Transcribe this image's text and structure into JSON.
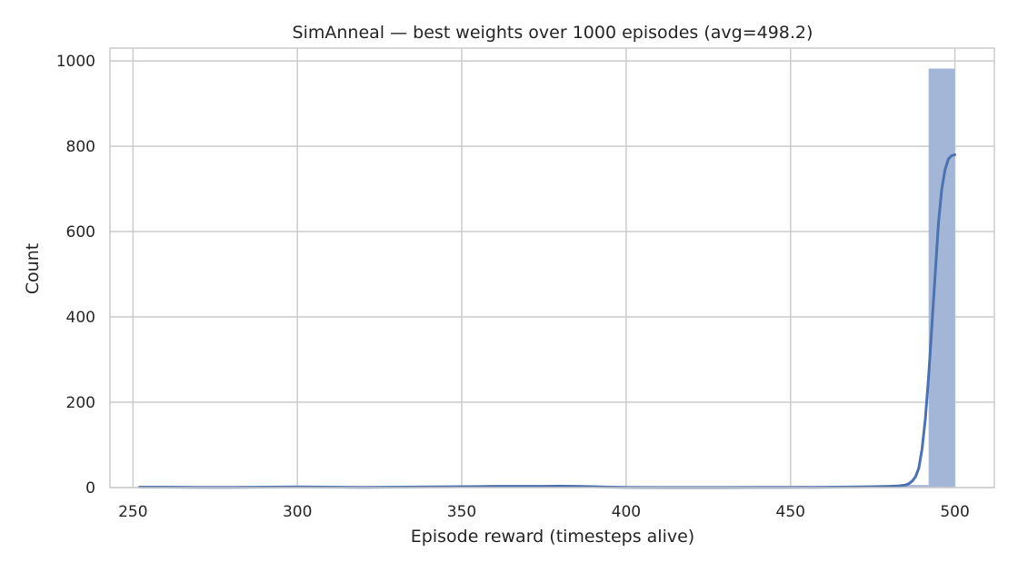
{
  "chart_data": {
    "type": "histogram",
    "title": "SimAnneal — best weights over 1000 episodes (avg=498.2)",
    "xlabel": "Episode reward (timesteps alive)",
    "ylabel": "Count",
    "xlim": [
      243,
      512
    ],
    "ylim": [
      0,
      1030
    ],
    "xticks": [
      250,
      300,
      350,
      400,
      450,
      500
    ],
    "yticks": [
      0,
      200,
      400,
      600,
      800,
      1000
    ],
    "grid": true,
    "colors": {
      "bar": "#a3b6d8",
      "kde": "#4c72b0"
    },
    "bins": [
      {
        "x0": 252,
        "x1": 260,
        "count": 2
      },
      {
        "x0": 300,
        "x1": 308,
        "count": 1
      },
      {
        "x0": 332,
        "x1": 340,
        "count": 1
      },
      {
        "x0": 356,
        "x1": 364,
        "count": 2
      },
      {
        "x0": 364,
        "x1": 372,
        "count": 2
      },
      {
        "x0": 380,
        "x1": 388,
        "count": 3
      },
      {
        "x0": 388,
        "x1": 396,
        "count": 1
      },
      {
        "x0": 484,
        "x1": 492,
        "count": 6
      },
      {
        "x0": 492,
        "x1": 500,
        "count": 982
      }
    ],
    "kde": {
      "x": [
        252,
        260,
        270,
        280,
        290,
        300,
        310,
        320,
        330,
        340,
        350,
        355,
        360,
        365,
        370,
        375,
        380,
        385,
        390,
        395,
        400,
        410,
        420,
        430,
        440,
        450,
        460,
        470,
        475,
        480,
        483,
        485,
        486,
        487,
        488,
        489,
        490,
        491,
        492,
        493,
        494,
        495,
        496,
        497,
        498,
        499,
        500
      ],
      "y": [
        1,
        1,
        0.5,
        0.5,
        1,
        1.5,
        1,
        0.5,
        1,
        1.5,
        2,
        2.5,
        3,
        3,
        3,
        3,
        3.5,
        3,
        2,
        1,
        0.5,
        0.3,
        0.3,
        0.3,
        0.4,
        0.5,
        0.8,
        1.5,
        2,
        3,
        4,
        6,
        9,
        15,
        25,
        45,
        90,
        160,
        260,
        380,
        500,
        620,
        700,
        745,
        770,
        778,
        780
      ]
    }
  }
}
